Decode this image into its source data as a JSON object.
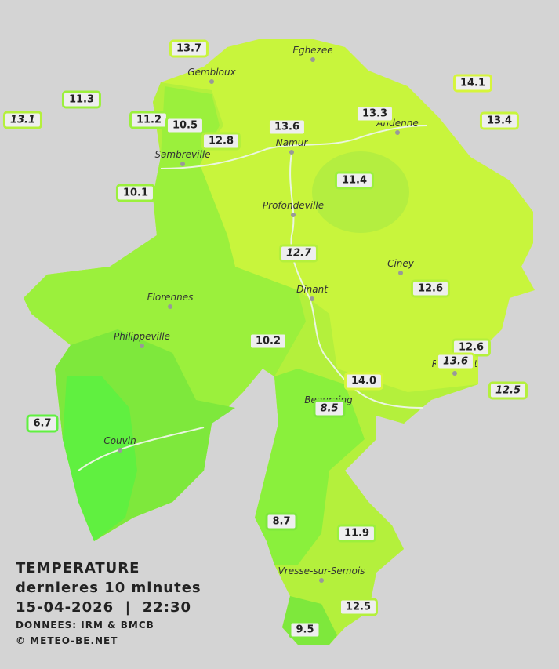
{
  "legend": {
    "title": "TEMPERATURE",
    "subtitle": "dernieres 10 minutes",
    "datetime": "15-04-2026  |  22:30",
    "source": "DONNEES: IRM & BMCB",
    "copyright": "© METEO-BE.NET"
  },
  "cities": [
    "Eghezee",
    "Gembloux",
    "Andenne",
    "Namur",
    "Sambreville",
    "Profondeville",
    "Ciney",
    "Dinant",
    "Florennes",
    "Philippeville",
    "Rochefort",
    "Beauraing",
    "Couvin",
    "Vresse-sur-Semois"
  ],
  "stations": [
    "13.7",
    "11.3",
    "13.1",
    "11.2",
    "10.5",
    "12.8",
    "13.6",
    "13.3",
    "14.1",
    "13.4",
    "10.1",
    "11.4",
    "12.7",
    "12.6",
    "10.2",
    "12.6",
    "13.6",
    "14.0",
    "12.5",
    "8.5",
    "6.7",
    "8.7",
    "11.9",
    "12.5",
    "9.5"
  ]
}
